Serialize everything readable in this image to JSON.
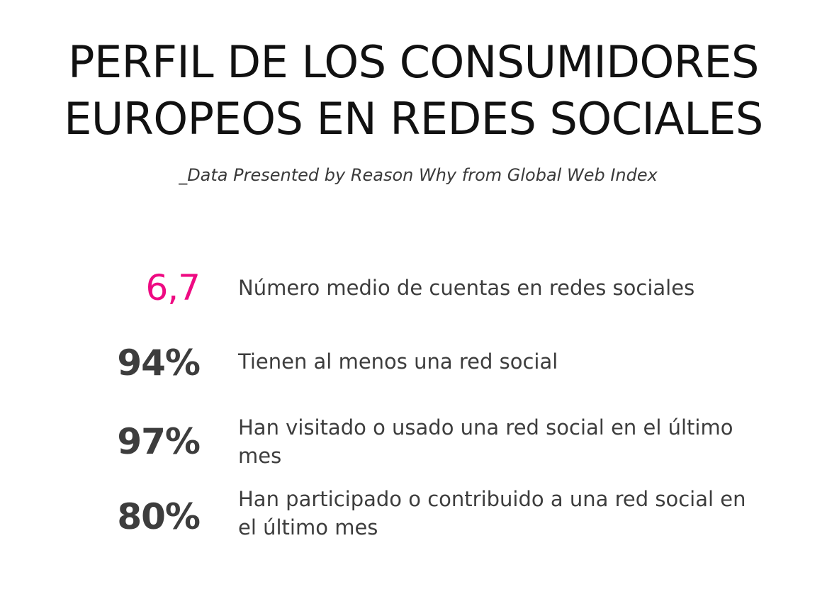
{
  "header": {
    "title_line1": "PERFIL DE LOS CONSUMIDORES",
    "title_line2": "EUROPEOS EN REDES SOCIALES",
    "subtitle": "_Data Presented by Reason Why from Global Web Index"
  },
  "stats": [
    {
      "value": "6,7",
      "label": "Número medio de cuentas en redes sociales"
    },
    {
      "value": "94%",
      "label": "Tienen al menos una red social"
    },
    {
      "value": "97%",
      "label": "Han visitado o usado una red social en el último mes"
    },
    {
      "value": "80%",
      "label": "Han participado o contribuido a una red social en el último mes"
    }
  ],
  "colors": {
    "accent": "#ee0a82",
    "text": "#3d3d3d",
    "title": "#111111",
    "background": "#ffffff"
  }
}
